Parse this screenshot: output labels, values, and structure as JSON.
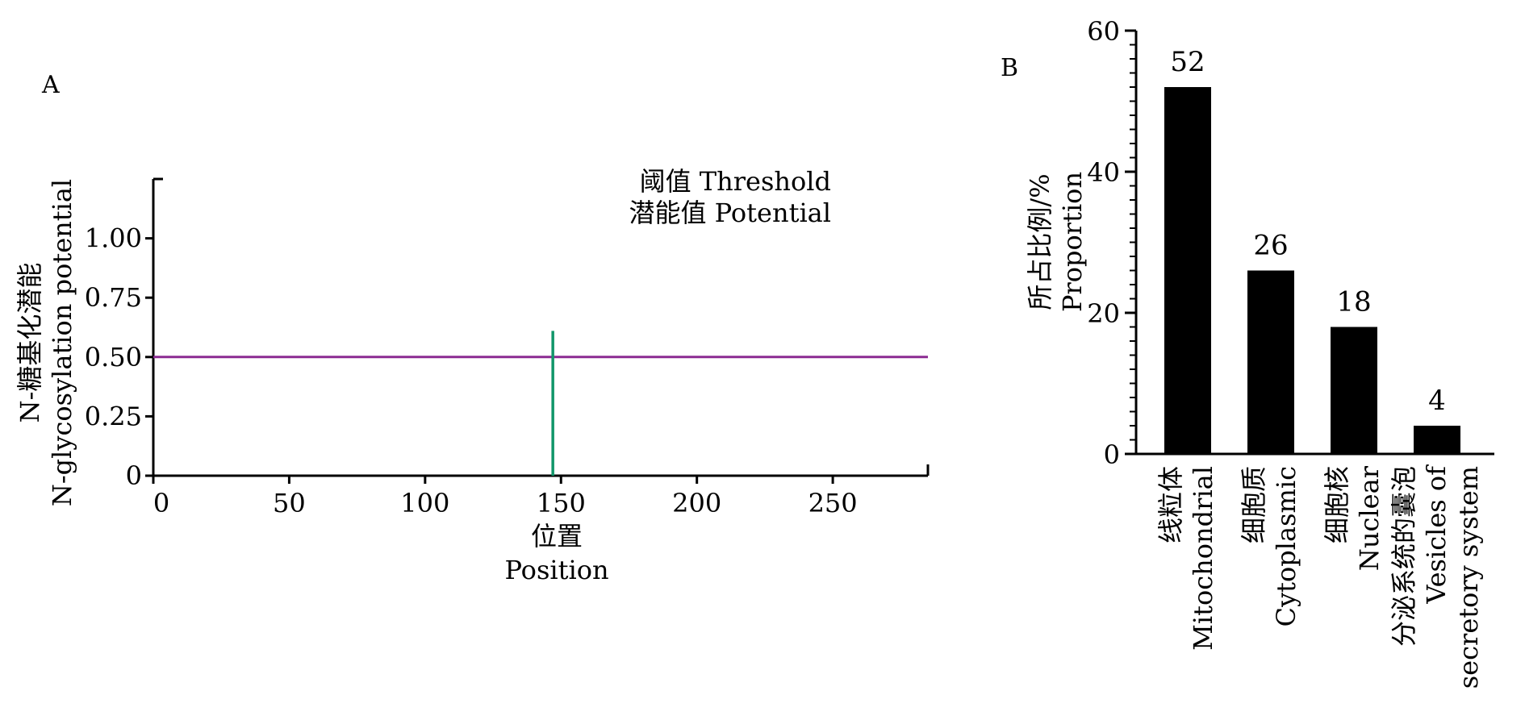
{
  "panels": {
    "a": "A",
    "b": "B"
  },
  "colors": {
    "threshold": "#8B2B92",
    "potential": "#11966A",
    "bar": "#000000"
  },
  "chart_data": [
    {
      "type": "line",
      "panel": "A",
      "xlabel_cn": "位置",
      "xlabel_en": "Position",
      "ylabel_cn": "N-糖基化潜能",
      "ylabel_en": "N-glycosylation potential",
      "xlim": [
        0,
        285
      ],
      "ylim": [
        0,
        1.25
      ],
      "x_ticks": [
        0,
        50,
        100,
        150,
        200,
        250
      ],
      "x_tick_labels": [
        "0",
        "50",
        "100",
        "150",
        "200",
        "250"
      ],
      "y_ticks": [
        0,
        0.25,
        0.5,
        0.75,
        1.0
      ],
      "y_tick_labels": [
        "0",
        "0.25",
        "0.50",
        "0.75",
        "1.00"
      ],
      "legend": [
        "阈值 Threshold",
        "潜能值 Potential"
      ],
      "legend_position": "top-right",
      "threshold": 0.5,
      "series": [
        {
          "name": "潜能值 Potential",
          "x": [
            147
          ],
          "values": [
            0.61
          ]
        }
      ]
    },
    {
      "type": "bar",
      "panel": "B",
      "ylabel_cn": "所占比例/%",
      "ylabel_en": "Proportion",
      "ylim": [
        0,
        60
      ],
      "y_ticks": [
        0,
        20,
        40,
        60
      ],
      "y_tick_labels": [
        "0",
        "20",
        "40",
        "60"
      ],
      "categories": [
        [
          "线粒体",
          "Mitochondrial"
        ],
        [
          "细胞质",
          "Cytoplasmic"
        ],
        [
          "细胞核",
          "Nuclear"
        ],
        [
          "分泌系统的囊泡",
          "Vesicles of",
          "secretory system"
        ]
      ],
      "values": [
        52,
        26,
        18,
        4
      ],
      "value_labels": [
        "52",
        "26",
        "18",
        "4"
      ]
    }
  ]
}
